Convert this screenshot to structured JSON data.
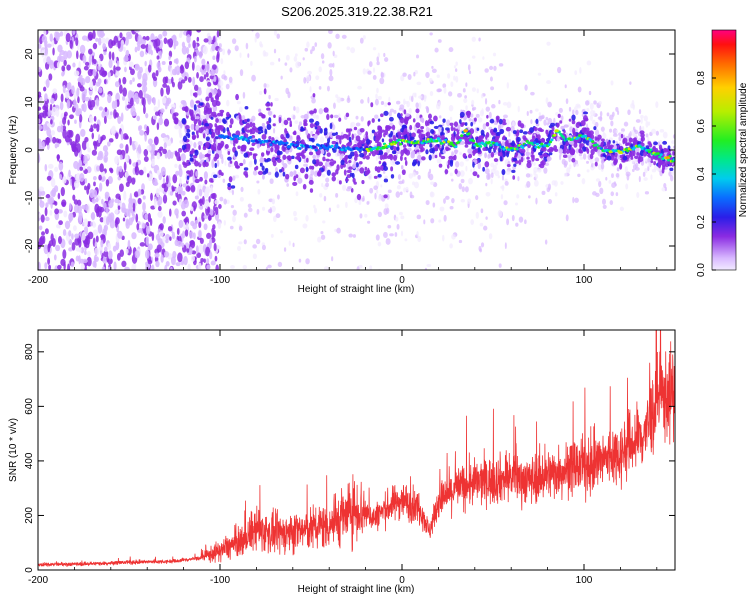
{
  "title": "S206.2025.319.22.38.R21",
  "chart_data": [
    {
      "type": "heatmap",
      "xlabel": "Height of straight line (km)",
      "ylabel": "Frequency (Hz)",
      "xlim": [
        -200,
        150
      ],
      "ylim": [
        -25,
        25
      ],
      "xticks": [
        -200,
        -100,
        0,
        100
      ],
      "yticks": [
        -20,
        -10,
        0,
        10,
        20
      ],
      "colorbar": {
        "label": "Normalized spectral amplitude",
        "range": [
          0,
          1
        ],
        "ticks": [
          "0.0",
          "0.2",
          "0.4",
          "0.6",
          "0.8"
        ]
      },
      "ridge": {
        "x": [
          -100,
          -80,
          -60,
          -40,
          -20,
          -10,
          0,
          10,
          20,
          30,
          35,
          40,
          50,
          60,
          70,
          80,
          85,
          90,
          100,
          110,
          120,
          130,
          140,
          150
        ],
        "y": [
          3,
          2,
          1,
          0.5,
          0,
          0.5,
          2,
          1.5,
          2,
          1,
          4,
          1,
          1.5,
          0,
          1.5,
          0.5,
          4,
          2,
          3,
          0,
          -0.5,
          1,
          -1,
          -2
        ]
      },
      "grid": false
    },
    {
      "type": "line",
      "xlabel": "Height of straight line (km)",
      "ylabel": "SNR (10 * v/v)",
      "xlim": [
        -200,
        150
      ],
      "ylim": [
        0,
        880
      ],
      "xticks": [
        -200,
        -100,
        0,
        100
      ],
      "yticks": [
        0,
        200,
        400,
        600,
        800
      ],
      "series": [
        {
          "color": "#ee3333",
          "x": [
            -200,
            -175,
            -150,
            -125,
            -110,
            -100,
            -90,
            -80,
            -70,
            -60,
            -50,
            -40,
            -30,
            -25,
            -20,
            -15,
            -10,
            -5,
            0,
            5,
            10,
            15,
            20,
            30,
            40,
            50,
            60,
            70,
            80,
            90,
            100,
            110,
            115,
            120,
            125,
            130,
            135,
            140,
            150
          ],
          "y": [
            20,
            22,
            28,
            32,
            45,
            70,
            100,
            150,
            130,
            140,
            150,
            170,
            200,
            230,
            210,
            190,
            220,
            240,
            260,
            240,
            230,
            140,
            250,
            300,
            320,
            330,
            340,
            330,
            350,
            370,
            380,
            400,
            420,
            430,
            460,
            480,
            520,
            620,
            650
          ]
        }
      ],
      "grid": false
    }
  ]
}
